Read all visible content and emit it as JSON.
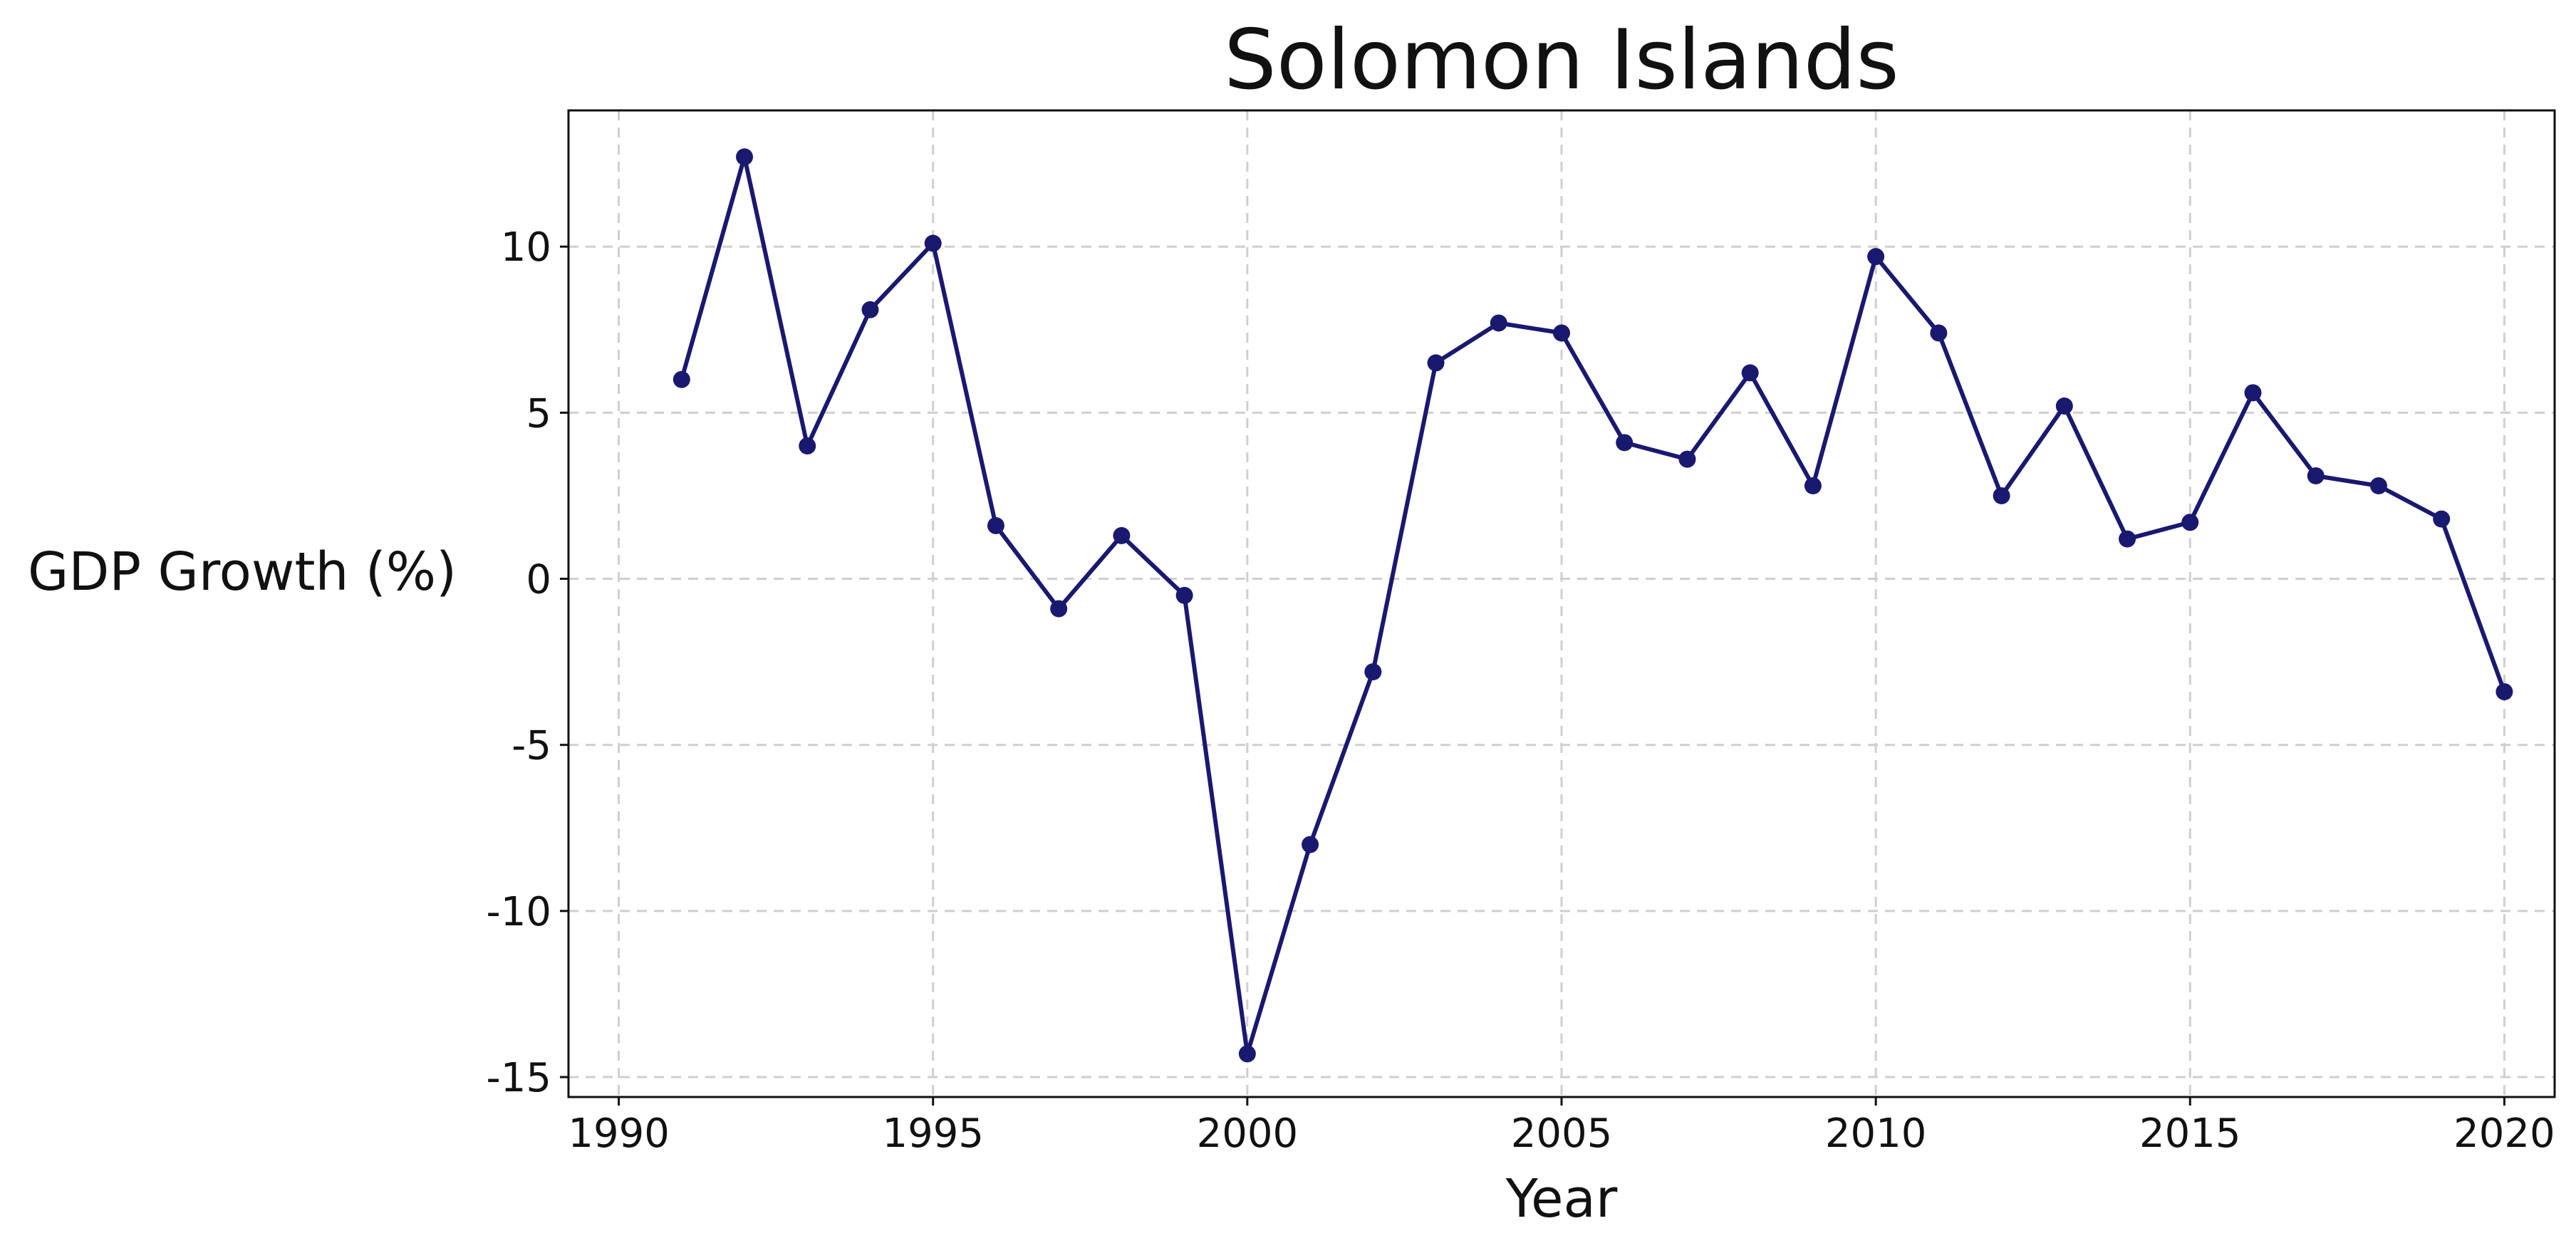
{
  "chart_data": {
    "type": "line",
    "title": "Solomon Islands",
    "xlabel": "Year",
    "ylabel": "GDP Growth (%)",
    "xlim": [
      1989.2,
      2020.8
    ],
    "ylim": [
      -15.6,
      14.1
    ],
    "xticks": [
      1990,
      1995,
      2000,
      2005,
      2010,
      2015,
      2020
    ],
    "xtick_labels": [
      "1990",
      "1995",
      "2000",
      "2005",
      "2010",
      "2015",
      "2020"
    ],
    "yticks": [
      10,
      5,
      0,
      -5,
      -10,
      -15
    ],
    "ytick_labels": [
      "10",
      "5",
      "0",
      "-5",
      "-10",
      "-15"
    ],
    "grid": true,
    "series": [
      {
        "color": "#191970",
        "x": [
          1991,
          1992,
          1993,
          1994,
          1995,
          1996,
          1997,
          1998,
          1999,
          2000,
          2001,
          2002,
          2003,
          2004,
          2005,
          2006,
          2007,
          2008,
          2009,
          2010,
          2011,
          2012,
          2013,
          2014,
          2015,
          2016,
          2017,
          2018,
          2019,
          2020
        ],
        "values": [
          6.0,
          12.7,
          4.0,
          8.1,
          10.1,
          1.6,
          -0.9,
          1.3,
          -0.5,
          -14.3,
          -8.0,
          -2.8,
          6.5,
          7.7,
          7.4,
          4.1,
          3.6,
          6.2,
          2.8,
          9.7,
          7.4,
          2.5,
          5.2,
          1.2,
          1.7,
          5.6,
          3.1,
          2.8,
          1.8,
          -3.4
        ]
      }
    ]
  }
}
